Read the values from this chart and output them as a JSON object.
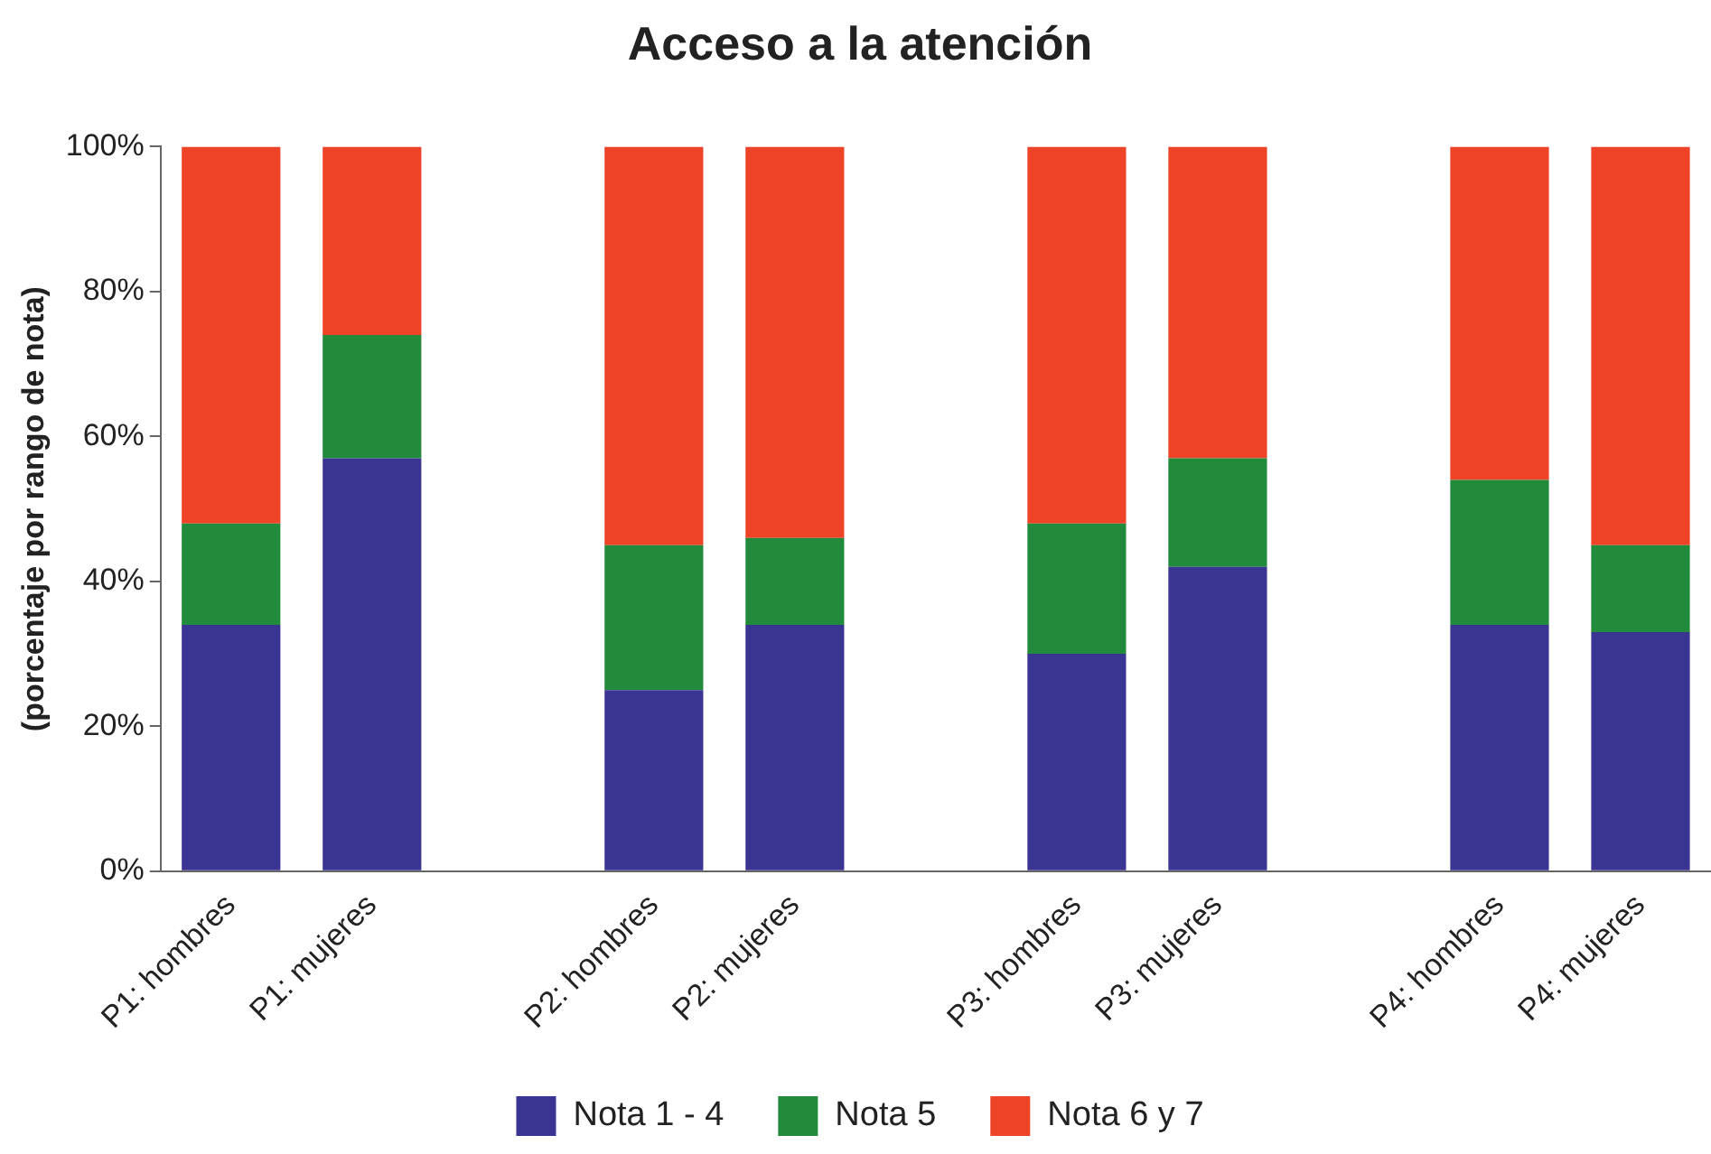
{
  "chart_data": {
    "type": "bar",
    "title": "Acceso a la atención",
    "ylabel": "(porcentaje por rango de nota)",
    "categories": [
      "P1: hombres",
      "P1: mujeres",
      null,
      "P2: hombres",
      "P2: mujeres",
      null,
      "P3: hombres",
      "P3: mujeres",
      null,
      "P4: hombres",
      "P4: mujeres"
    ],
    "series": [
      {
        "name": "Nota 1 - 4",
        "color": "#3a3593",
        "values": [
          34,
          57,
          null,
          25,
          34,
          null,
          30,
          42,
          null,
          34,
          33
        ]
      },
      {
        "name": "Nota 5",
        "color": "#228a3b",
        "values": [
          14,
          17,
          null,
          20,
          12,
          null,
          18,
          15,
          null,
          20,
          12
        ]
      },
      {
        "name": "Nota 6 y 7",
        "color": "#ee4327",
        "values": [
          52,
          26,
          null,
          55,
          54,
          null,
          52,
          43,
          null,
          46,
          55
        ]
      }
    ],
    "stacked": true,
    "ylim": [
      0,
      100
    ],
    "yticks": [
      {
        "value": 0,
        "label": "0%"
      },
      {
        "value": 20,
        "label": "20%"
      },
      {
        "value": 40,
        "label": "40%"
      },
      {
        "value": 60,
        "label": "60%"
      },
      {
        "value": 80,
        "label": "80%"
      },
      {
        "value": 100,
        "label": "100%"
      }
    ],
    "grid": false,
    "legend": "bottom"
  }
}
